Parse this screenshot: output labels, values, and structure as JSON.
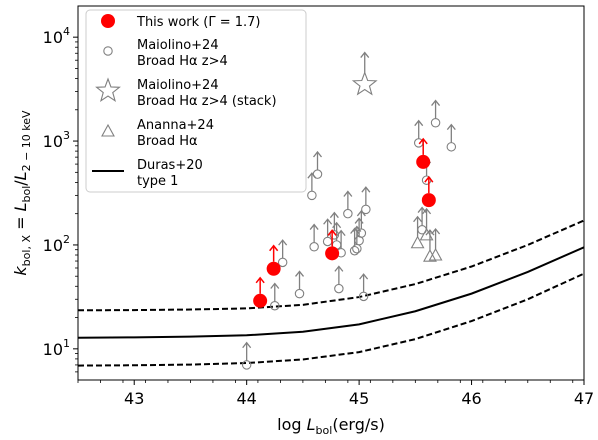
{
  "chart_data": {
    "type": "scatter",
    "xlabel": "log L_bol(erg/s)",
    "ylabel": "k_bol,X = L_bol/L_2-10 keV",
    "xlim": [
      42.5,
      47
    ],
    "ylim_log10": [
      0.7,
      4.3
    ],
    "y_scale": "log",
    "x_ticks": [
      "43",
      "44",
      "45",
      "46",
      "47"
    ],
    "y_ticks": [
      {
        "value": 10,
        "base": "10",
        "exp": "1"
      },
      {
        "value": 100,
        "base": "10",
        "exp": "2"
      },
      {
        "value": 1000,
        "base": "10",
        "exp": "3"
      },
      {
        "value": 10000,
        "base": "10",
        "exp": "4"
      }
    ],
    "legend_position": "top-left",
    "legend": [
      {
        "id": "this_work",
        "lines": [
          "This work (Γ = 1.7)"
        ]
      },
      {
        "id": "maiolino",
        "lines": [
          "Maiolino+24",
          "Broad Hα z>4"
        ]
      },
      {
        "id": "maiolino_stack",
        "lines": [
          "Maiolino+24",
          "Broad Hα z>4 (stack)"
        ]
      },
      {
        "id": "ananna",
        "lines": [
          "Ananna+24",
          "Broad Hα"
        ]
      },
      {
        "id": "duras",
        "lines": [
          "Duras+20",
          "type 1"
        ]
      }
    ],
    "colors": {
      "this_work": "#ff0000",
      "other": "#808080",
      "duras": "#000000"
    },
    "series": [
      {
        "id": "this_work",
        "name": "This work (Γ = 1.7)",
        "marker": "filled-circle",
        "lower_limit": true,
        "points": [
          {
            "x": 44.12,
            "y": 29
          },
          {
            "x": 44.24,
            "y": 59
          },
          {
            "x": 44.76,
            "y": 83
          },
          {
            "x": 45.57,
            "y": 630
          },
          {
            "x": 45.62,
            "y": 270
          }
        ]
      },
      {
        "id": "maiolino",
        "name": "Maiolino+24 Broad Hα z>4",
        "marker": "open-circle",
        "lower_limit": true,
        "points": [
          {
            "x": 44.0,
            "y": 7
          },
          {
            "x": 44.25,
            "y": 26
          },
          {
            "x": 44.32,
            "y": 68
          },
          {
            "x": 44.47,
            "y": 34
          },
          {
            "x": 44.58,
            "y": 300
          },
          {
            "x": 44.6,
            "y": 96
          },
          {
            "x": 44.63,
            "y": 480
          },
          {
            "x": 44.72,
            "y": 108
          },
          {
            "x": 44.78,
            "y": 125
          },
          {
            "x": 44.8,
            "y": 100
          },
          {
            "x": 44.82,
            "y": 38
          },
          {
            "x": 44.84,
            "y": 84
          },
          {
            "x": 44.9,
            "y": 200
          },
          {
            "x": 44.96,
            "y": 88
          },
          {
            "x": 44.98,
            "y": 92
          },
          {
            "x": 45.0,
            "y": 110
          },
          {
            "x": 45.02,
            "y": 130
          },
          {
            "x": 45.04,
            "y": 32
          },
          {
            "x": 45.06,
            "y": 220
          },
          {
            "x": 45.53,
            "y": 960
          },
          {
            "x": 45.56,
            "y": 140
          },
          {
            "x": 45.6,
            "y": 420
          },
          {
            "x": 45.68,
            "y": 1500
          },
          {
            "x": 45.82,
            "y": 880
          }
        ]
      },
      {
        "id": "maiolino_stack",
        "name": "Maiolino+24 Broad Hα z>4 (stack)",
        "marker": "open-star",
        "lower_limit": true,
        "points": [
          {
            "x": 45.05,
            "y": 3500
          }
        ]
      },
      {
        "id": "ananna",
        "name": "Ananna+24 Broad Hα",
        "marker": "open-triangle",
        "lower_limit": true,
        "points": [
          {
            "x": 45.52,
            "y": 105
          },
          {
            "x": 45.6,
            "y": 125
          },
          {
            "x": 45.63,
            "y": 78
          },
          {
            "x": 45.68,
            "y": 80
          }
        ]
      }
    ],
    "curves": [
      {
        "id": "duras_median",
        "style": "solid",
        "points": [
          [
            42.5,
            12.8
          ],
          [
            43,
            12.9
          ],
          [
            43.5,
            13.1
          ],
          [
            44,
            13.5
          ],
          [
            44.5,
            14.6
          ],
          [
            45,
            17.2
          ],
          [
            45.5,
            23
          ],
          [
            46,
            34
          ],
          [
            46.5,
            55
          ],
          [
            47,
            95
          ]
        ]
      },
      {
        "id": "duras_upper",
        "style": "dashed",
        "points": [
          [
            42.5,
            23.5
          ],
          [
            43,
            23.6
          ],
          [
            43.5,
            23.9
          ],
          [
            44,
            24.5
          ],
          [
            44.5,
            26.5
          ],
          [
            45,
            31.5
          ],
          [
            45.5,
            42
          ],
          [
            46,
            62
          ],
          [
            46.5,
            100
          ],
          [
            47,
            172
          ]
        ]
      },
      {
        "id": "duras_lower",
        "style": "dashed",
        "points": [
          [
            42.5,
            6.9
          ],
          [
            43,
            6.95
          ],
          [
            43.5,
            7.05
          ],
          [
            44,
            7.3
          ],
          [
            44.5,
            7.9
          ],
          [
            45,
            9.3
          ],
          [
            45.5,
            12.4
          ],
          [
            46,
            18.5
          ],
          [
            46.5,
            30
          ],
          [
            47,
            53
          ]
        ]
      }
    ]
  }
}
